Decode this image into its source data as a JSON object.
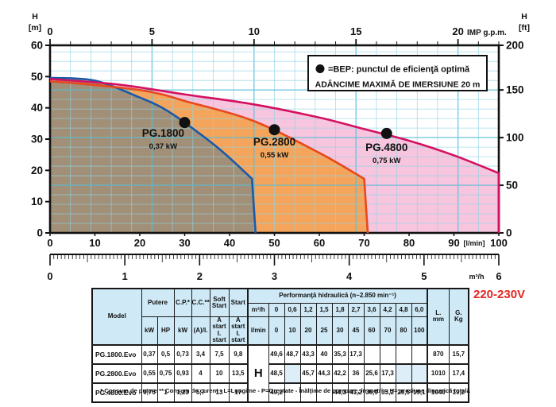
{
  "chart_data": {
    "type": "line",
    "title": "",
    "grid": true,
    "grid_color": "#8fd4e6",
    "grid_major_color": "#55bdd8",
    "axis_color": "#111111",
    "x_axis_bottom": {
      "label": "[l/min]",
      "min": 0,
      "max": 100,
      "ticks": [
        0,
        10,
        20,
        30,
        40,
        50,
        60,
        70,
        80,
        90,
        100
      ]
    },
    "x_axis_top": {
      "label": "IMP g.p.m.",
      "min": 0,
      "max": 22,
      "labeled_ticks": [
        0,
        5,
        10,
        15,
        20
      ],
      "minor_step": 1
    },
    "x_axis_ruler": {
      "label": "m³/h",
      "min": 0,
      "max": 6,
      "ticks": [
        0,
        1,
        2,
        3,
        4,
        5,
        6
      ],
      "fine_step": 0.05
    },
    "y_axis_left": {
      "label": "H [m]",
      "label_lines": [
        "H",
        "[m]"
      ],
      "min": 0,
      "max": 60,
      "ticks": [
        0,
        10,
        20,
        30,
        40,
        50,
        60
      ]
    },
    "y_axis_right": {
      "label": "H [ft]",
      "label_lines": [
        "H",
        "[ft]"
      ],
      "ticks": [
        0,
        50,
        100,
        150,
        200
      ],
      "m_per_ft": 0.3048
    },
    "series": [
      {
        "name": "PG.1800",
        "power": "0,37 kW",
        "line_color": "#1b59a8",
        "fill_color": "#a28f77",
        "points": [
          [
            0,
            49.6
          ],
          [
            10,
            48.7
          ],
          [
            20,
            43.3
          ],
          [
            25,
            40
          ],
          [
            30,
            35.3
          ],
          [
            38,
            26.5
          ],
          [
            45,
            17.3
          ]
        ],
        "drop_x": 45.8,
        "bep": [
          30,
          35.3
        ],
        "label_pos": [
          25.2,
          30.8
        ],
        "power_pos": [
          25.2,
          27.0
        ]
      },
      {
        "name": "PG.2800",
        "power": "0,55 kW",
        "line_color": "#e8491c",
        "fill_color": "#f4a55b",
        "points": [
          [
            0,
            48.5
          ],
          [
            10,
            47.3
          ],
          [
            20,
            45.7
          ],
          [
            25,
            44.3
          ],
          [
            30,
            42.2
          ],
          [
            45,
            36
          ],
          [
            60,
            25.6
          ],
          [
            70,
            17.3
          ]
        ],
        "drop_x": 70.8,
        "bep": [
          50,
          33
        ],
        "label_pos": [
          50,
          28.0
        ],
        "power_pos": [
          50,
          24.2
        ]
      },
      {
        "name": "PG.4800",
        "power": "0,75 kW",
        "line_color": "#d4115f",
        "fill_color": "#f8c5de",
        "points": [
          [
            0,
            49.2
          ],
          [
            15,
            47.5
          ],
          [
            30,
            44.3
          ],
          [
            45,
            41.2
          ],
          [
            60,
            36.9
          ],
          [
            70,
            33.2
          ],
          [
            80,
            29.5
          ],
          [
            90,
            24.8
          ],
          [
            100,
            19.1
          ]
        ],
        "drop_x": 100,
        "bep": [
          75,
          31.8
        ],
        "label_pos": [
          75,
          26.2
        ],
        "power_pos": [
          75,
          22.4
        ]
      }
    ],
    "legend": {
      "bep_label": "=BEP: punctul de eficienţă optimă",
      "note": "ADÂNCIME MAXIMĂ DE IMERSIUNE 20 m"
    }
  },
  "table": {
    "voltage": "220-230V",
    "headers": {
      "model": "Model",
      "putere": "Putere",
      "kw": "kW",
      "hp": "HP",
      "cp": "C.P.*",
      "cp_unit": "kW",
      "cc": "C.C.**",
      "cc_unit": "(A)/I.",
      "soft_start": "Soft Start",
      "soft_start_unit": "A start\nI. start",
      "start": "Start",
      "start_unit": "A start\nI. start",
      "perf": "Performanţă hidraulică (n~2.850 min⁻¹)",
      "m3h_label": "m³/h",
      "lmin_label": "l/min",
      "h_label": "H",
      "l_mm": "L.\nmm",
      "g_kg": "G.\nKg"
    },
    "m3h_values": [
      "0",
      "0,6",
      "1,2",
      "1,5",
      "1,8",
      "2,7",
      "3,6",
      "4,2",
      "4,8",
      "6,0"
    ],
    "lmin_values": [
      "0",
      "10",
      "20",
      "25",
      "30",
      "45",
      "60",
      "70",
      "80",
      "100"
    ],
    "rows": [
      {
        "model": "PG.1800.Evo",
        "kw": "0,37",
        "hp": "0,5",
        "cp": "0,73",
        "cc": "3,4",
        "soft": "7,5",
        "start": "9,8",
        "h": [
          "49,6",
          "48,7",
          "43,3",
          "40",
          "35,3",
          "17,3",
          "",
          "",
          "",
          ""
        ],
        "l": "870",
        "g": "15,7"
      },
      {
        "model": "PG.2800.Evo",
        "kw": "0,55",
        "hp": "0,75",
        "cp": "0,93",
        "cc": "4",
        "soft": "10",
        "start": "13,5",
        "h": [
          "48,5",
          "",
          "45,7",
          "44,3",
          "42,2",
          "36",
          "25,6",
          "17,3",
          "",
          ""
        ],
        "l": "1010",
        "g": "17,4"
      },
      {
        "model": "PG.4800.Evo",
        "kw": "0,75",
        "hp": "1",
        "cp": "1,23",
        "cc": "5,7",
        "soft": "13",
        "start": "17",
        "h": [
          "49,2",
          "",
          "",
          "",
          "44,3",
          "41,2",
          "36,9",
          "33,2",
          "29,5",
          "19,1"
        ],
        "l": "1040",
        "g": "19,2"
      }
    ],
    "tints": [
      [],
      [
        1,
        8,
        9
      ],
      []
    ],
    "footnote": "* Consum de putere ** Consum de curent - L=Lungime - P=Greutate - Înălţime de pompare, în metri = H= presiune dinamică totală"
  }
}
